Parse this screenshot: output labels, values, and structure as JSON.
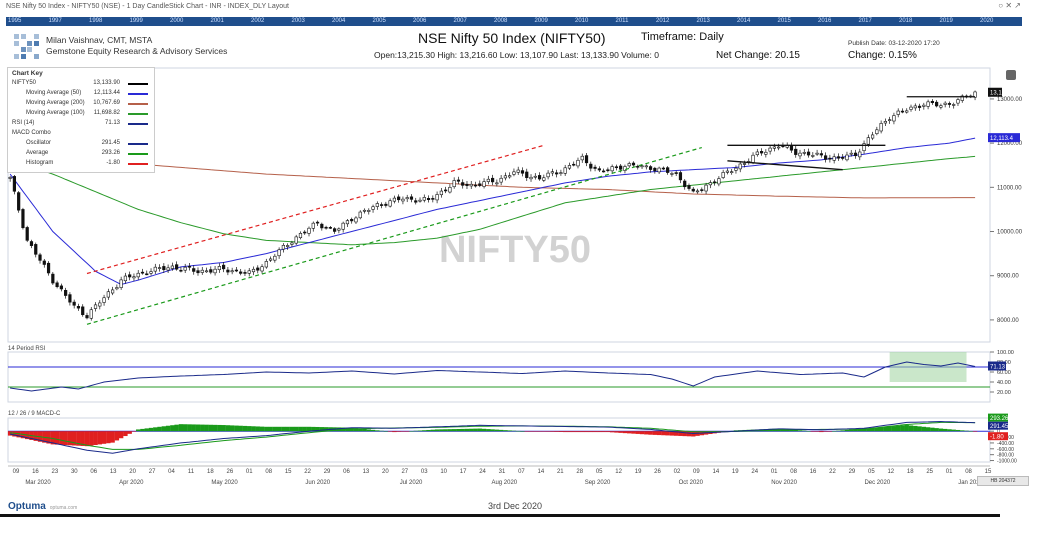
{
  "header": {
    "window_title": "NSE Nifty 50 Index - NIFTY50 (NSE) - 1 Day CandleStick Chart - INR - INDEX_DLY Layout",
    "author_name": "Milan Vaishnav, CMT, MSTA",
    "author_company": "Gemstone Equity Research & Advisory Services",
    "chart_title": "NSE Nifty 50 Index (NIFTY50)",
    "timeframe": "Timeframe: Daily",
    "publish_date": "Publish Date: 03-12-2020 17:20",
    "ohlc_line": "Open:13,215.30   High: 13,216.60   Low: 13,107.90   Last: 13,133.90   Volume: 0",
    "net_change": "Net Change: 20.15",
    "change_pct": "Change: 0.15%",
    "watermark": "NIFTY50"
  },
  "year_strip": [
    "1995",
    "1997",
    "1998",
    "1999",
    "2000",
    "2001",
    "2002",
    "2003",
    "2004",
    "2005",
    "2006",
    "2007",
    "2008",
    "2009",
    "2010",
    "2011",
    "2012",
    "2013",
    "2014",
    "2015",
    "2016",
    "2017",
    "2018",
    "2019",
    "2020"
  ],
  "chart_key": {
    "title": "Chart Key",
    "rows": [
      {
        "label": "NIFTY50",
        "value": "13,133.90",
        "color": "#000000",
        "indent": false
      },
      {
        "label": "Moving Average (50)",
        "value": "12,113.44",
        "color": "#2a2ad6",
        "indent": true
      },
      {
        "label": "Moving Average (200)",
        "value": "10,767.69",
        "color": "#b5604a",
        "indent": true
      },
      {
        "label": "Moving Average (100)",
        "value": "11,698.82",
        "color": "#2a9a2a",
        "indent": true
      },
      {
        "label": "RSI (14)",
        "value": "71.13",
        "color": "#1a2a8a",
        "indent": false
      },
      {
        "label": "MACD Combo",
        "value": "",
        "color": "",
        "indent": false
      },
      {
        "label": "Oscillator",
        "value": "291.45",
        "color": "#1a2a8a",
        "indent": true
      },
      {
        "label": "Average",
        "value": "293.26",
        "color": "#1a9a1a",
        "indent": true
      },
      {
        "label": "Histogram",
        "value": "-1.80",
        "color": "#e02020",
        "indent": true
      }
    ]
  },
  "panels": {
    "rsi_title": "14 Period RSI",
    "macd_title": "12 / 26 / 9 MACD-C"
  },
  "footer": {
    "brand": "Optuma",
    "brand_site": "optuma.com",
    "date_stamp": "3rd Dec 2020",
    "corner_tab": "HB 204372"
  },
  "chart_data": [
    {
      "type": "candlestick",
      "title": "NSE Nifty 50 Index (NIFTY50)",
      "yticks": [
        8000,
        9000,
        10000,
        11000,
        12000,
        13000
      ],
      "ytick_labels": [
        "8000.00",
        "9000.00",
        "10000.00",
        "11000.00",
        "12000.00",
        "13000.00"
      ],
      "ylim": [
        7500,
        13700
      ],
      "last_price_label": "13,1",
      "ma50_label": "12,113.4",
      "x_day_labels": [
        "09",
        "16",
        "23",
        "30",
        "06",
        "13",
        "20",
        "27",
        "04",
        "11",
        "18",
        "26",
        "01",
        "08",
        "15",
        "22",
        "29",
        "06",
        "13",
        "20",
        "27",
        "03",
        "10",
        "17",
        "24",
        "31",
        "07",
        "14",
        "21",
        "28",
        "05",
        "12",
        "19",
        "26",
        "02",
        "09",
        "14",
        "19",
        "24",
        "01",
        "08",
        "16",
        "22",
        "29",
        "05",
        "12",
        "18",
        "25",
        "01",
        "08",
        "15"
      ],
      "x_month_labels": [
        "Mar 2020",
        "Apr 2020",
        "May 2020",
        "Jun 2020",
        "Jul 2020",
        "Aug 2020",
        "Sep 2020",
        "Oct 2020",
        "Nov 2020",
        "Dec 2020",
        "Jan 2021"
      ],
      "close_anchors": [
        [
          0,
          11200
        ],
        [
          4,
          9800
        ],
        [
          10,
          8900
        ],
        [
          15,
          8300
        ],
        [
          18,
          8100
        ],
        [
          22,
          8500
        ],
        [
          26,
          8900
        ],
        [
          32,
          9100
        ],
        [
          38,
          9200
        ],
        [
          44,
          9100
        ],
        [
          50,
          9150
        ],
        [
          56,
          9050
        ],
        [
          60,
          9300
        ],
        [
          66,
          9800
        ],
        [
          72,
          10200
        ],
        [
          76,
          10000
        ],
        [
          80,
          10300
        ],
        [
          86,
          10600
        ],
        [
          92,
          10750
        ],
        [
          98,
          10700
        ],
        [
          104,
          11100
        ],
        [
          108,
          11050
        ],
        [
          114,
          11150
        ],
        [
          118,
          11350
        ],
        [
          124,
          11200
        ],
        [
          130,
          11420
        ],
        [
          134,
          11650
        ],
        [
          138,
          11350
        ],
        [
          144,
          11500
        ],
        [
          150,
          11450
        ],
        [
          156,
          11300
        ],
        [
          160,
          10850
        ],
        [
          164,
          11100
        ],
        [
          170,
          11450
        ],
        [
          176,
          11800
        ],
        [
          180,
          11950
        ],
        [
          184,
          11800
        ],
        [
          190,
          11700
        ],
        [
          194,
          11650
        ],
        [
          198,
          11750
        ],
        [
          202,
          12200
        ],
        [
          206,
          12600
        ],
        [
          210,
          12750
        ],
        [
          214,
          12900
        ],
        [
          218,
          12850
        ],
        [
          222,
          12960
        ],
        [
          226,
          13140
        ]
      ],
      "ma50_anchors": [
        [
          0,
          11300
        ],
        [
          10,
          10000
        ],
        [
          20,
          9100
        ],
        [
          26,
          8800
        ],
        [
          30,
          8900
        ],
        [
          40,
          9200
        ],
        [
          50,
          9300
        ],
        [
          60,
          9500
        ],
        [
          70,
          9750
        ],
        [
          80,
          10000
        ],
        [
          90,
          10250
        ],
        [
          100,
          10500
        ],
        [
          110,
          10700
        ],
        [
          120,
          10900
        ],
        [
          130,
          11100
        ],
        [
          140,
          11250
        ],
        [
          150,
          11350
        ],
        [
          160,
          11400
        ],
        [
          170,
          11450
        ],
        [
          180,
          11550
        ],
        [
          190,
          11620
        ],
        [
          200,
          11750
        ],
        [
          210,
          11900
        ],
        [
          220,
          12000
        ],
        [
          226,
          12113
        ]
      ],
      "ma100_anchors": [
        [
          0,
          11600
        ],
        [
          10,
          11300
        ],
        [
          20,
          10900
        ],
        [
          30,
          10500
        ],
        [
          40,
          10200
        ],
        [
          50,
          9950
        ],
        [
          60,
          9800
        ],
        [
          70,
          9750
        ],
        [
          80,
          9700
        ],
        [
          90,
          9750
        ],
        [
          100,
          9850
        ],
        [
          110,
          10050
        ],
        [
          120,
          10350
        ],
        [
          130,
          10650
        ],
        [
          140,
          10800
        ],
        [
          150,
          10950
        ],
        [
          160,
          11050
        ],
        [
          170,
          11150
        ],
        [
          180,
          11250
        ],
        [
          190,
          11350
        ],
        [
          200,
          11450
        ],
        [
          210,
          11550
        ],
        [
          220,
          11650
        ],
        [
          226,
          11699
        ]
      ],
      "ma200_anchors": [
        [
          0,
          11750
        ],
        [
          20,
          11600
        ],
        [
          40,
          11450
        ],
        [
          60,
          11300
        ],
        [
          80,
          11200
        ],
        [
          100,
          11100
        ],
        [
          120,
          11000
        ],
        [
          140,
          10950
        ],
        [
          160,
          10850
        ],
        [
          180,
          10800
        ],
        [
          200,
          10760
        ],
        [
          226,
          10768
        ]
      ],
      "trendlines": {
        "upper_channel": [
          [
            18,
            9050
          ],
          [
            125,
            11950
          ]
        ],
        "lower_channel": [
          [
            18,
            7900
          ],
          [
            162,
            11900
          ]
        ],
        "rect_top": [
          [
            168,
            11950
          ],
          [
            205,
            11950
          ]
        ],
        "rect_bottom": [
          [
            168,
            11600
          ],
          [
            195,
            11400
          ]
        ],
        "recent_high": [
          [
            210,
            13050
          ],
          [
            226,
            13050
          ]
        ]
      }
    },
    {
      "type": "line",
      "title": "14 Period RSI",
      "yticks": [
        20,
        40,
        60,
        80,
        100
      ],
      "ytick_labels": [
        "20.00",
        "40.00",
        "60.00",
        "80.00",
        "100.00"
      ],
      "ylim": [
        0,
        100
      ],
      "levels": [
        70,
        30
      ],
      "last_value_label": "71.13",
      "anchors": [
        [
          0,
          28
        ],
        [
          5,
          22
        ],
        [
          12,
          30
        ],
        [
          16,
          26
        ],
        [
          22,
          40
        ],
        [
          30,
          48
        ],
        [
          40,
          52
        ],
        [
          50,
          55
        ],
        [
          60,
          60
        ],
        [
          70,
          58
        ],
        [
          80,
          62
        ],
        [
          90,
          56
        ],
        [
          100,
          63
        ],
        [
          110,
          60
        ],
        [
          120,
          57
        ],
        [
          130,
          62
        ],
        [
          140,
          58
        ],
        [
          150,
          55
        ],
        [
          155,
          46
        ],
        [
          160,
          32
        ],
        [
          165,
          50
        ],
        [
          175,
          62
        ],
        [
          185,
          55
        ],
        [
          195,
          58
        ],
        [
          200,
          50
        ],
        [
          205,
          70
        ],
        [
          210,
          80
        ],
        [
          214,
          75
        ],
        [
          218,
          72
        ],
        [
          222,
          78
        ],
        [
          226,
          71
        ]
      ]
    },
    {
      "type": "line",
      "title": "12 / 26 / 9 MACD-C",
      "yticks": [
        -1000,
        -800,
        -600,
        -400,
        -200,
        0
      ],
      "ytick_labels": [
        "-1000.00",
        "-800.00",
        "-600.00",
        "-400.00",
        "-200.00",
        "0"
      ],
      "ylim": [
        -1050,
        450
      ],
      "series": [
        {
          "name": "Oscillator",
          "value_label": "291.45",
          "anchors": [
            [
              0,
              -100
            ],
            [
              10,
              -400
            ],
            [
              18,
              -650
            ],
            [
              24,
              -750
            ],
            [
              30,
              -600
            ],
            [
              40,
              -400
            ],
            [
              50,
              -250
            ],
            [
              60,
              -150
            ],
            [
              70,
              0
            ],
            [
              80,
              120
            ],
            [
              90,
              100
            ],
            [
              100,
              150
            ],
            [
              110,
              200
            ],
            [
              120,
              180
            ],
            [
              130,
              160
            ],
            [
              140,
              140
            ],
            [
              150,
              60
            ],
            [
              160,
              -80
            ],
            [
              170,
              0
            ],
            [
              180,
              80
            ],
            [
              190,
              50
            ],
            [
              200,
              100
            ],
            [
              210,
              300
            ],
            [
              218,
              330
            ],
            [
              226,
              291
            ]
          ]
        },
        {
          "name": "Average",
          "value_label": "293.26",
          "anchors": [
            [
              0,
              -50
            ],
            [
              10,
              -250
            ],
            [
              18,
              -480
            ],
            [
              24,
              -620
            ],
            [
              30,
              -620
            ],
            [
              40,
              -480
            ],
            [
              50,
              -320
            ],
            [
              60,
              -200
            ],
            [
              70,
              -50
            ],
            [
              80,
              80
            ],
            [
              90,
              110
            ],
            [
              100,
              130
            ],
            [
              110,
              170
            ],
            [
              120,
              180
            ],
            [
              130,
              170
            ],
            [
              140,
              150
            ],
            [
              150,
              100
            ],
            [
              160,
              -20
            ],
            [
              170,
              -10
            ],
            [
              180,
              50
            ],
            [
              190,
              60
            ],
            [
              200,
              70
            ],
            [
              210,
              230
            ],
            [
              218,
              300
            ],
            [
              226,
              293
            ]
          ]
        },
        {
          "name": "Histogram",
          "value_label": "-1.80"
        }
      ]
    }
  ]
}
